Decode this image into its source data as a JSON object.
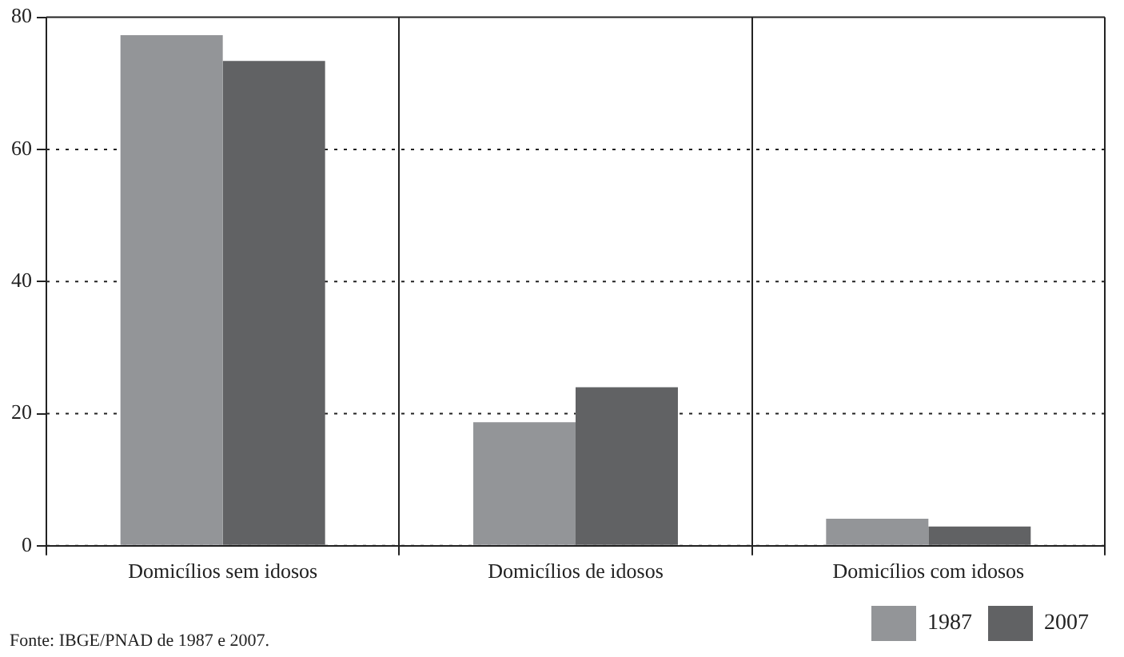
{
  "chart_data": {
    "type": "bar",
    "categories": [
      "Domicílios sem idosos",
      "Domicílios de idosos",
      "Domicílios com idosos"
    ],
    "series": [
      {
        "name": "1987",
        "color": "#939598",
        "values": [
          77.3,
          18.7,
          4.1
        ]
      },
      {
        "name": "2007",
        "color": "#616264",
        "values": [
          73.4,
          24.0,
          2.9
        ]
      }
    ],
    "ylim": [
      0,
      80
    ],
    "yticks": [
      0,
      20,
      40,
      60,
      80
    ],
    "grid": "y",
    "legend": "bottom right",
    "annotations": [
      "Fonte: IBGE/PNAD de 1987 e 2007."
    ]
  }
}
